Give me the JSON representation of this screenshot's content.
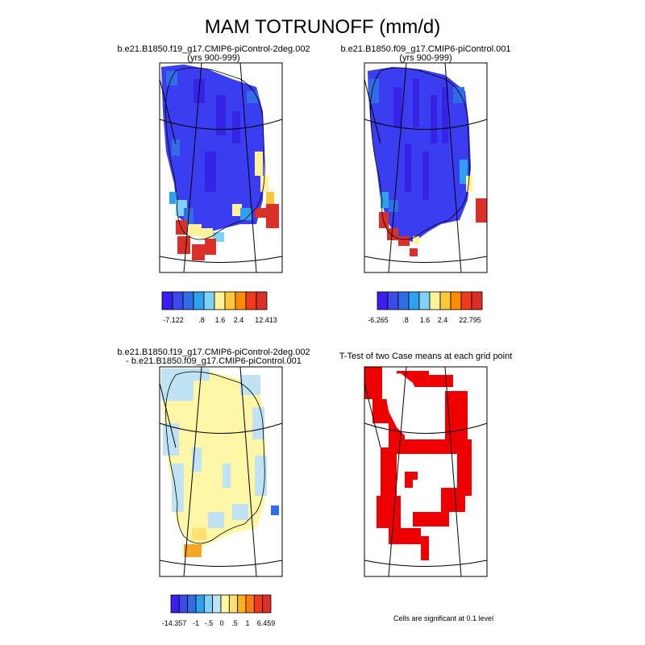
{
  "figure": {
    "title": "MAM TOTRUNOFF (mm/d)",
    "footnote": "Cells are significant at 0.1 level"
  },
  "panels": [
    {
      "id": "case1",
      "title_line1": "b.e21.B1850.f19_g17.CMIP6-piControl-2deg.002",
      "title_line2": "(yrs 900-999)",
      "colorbar": {
        "colors": [
          "#3a1ef0",
          "#3a4be8",
          "#2f6ee6",
          "#2fa0ee",
          "#7fd2f5",
          "#fff29a",
          "#ffc83a",
          "#ff8c00",
          "#f03a1e",
          "#d9302a"
        ],
        "labels": [
          "-7.122",
          ".8",
          "1.6",
          "2.4",
          "12.413"
        ]
      }
    },
    {
      "id": "case2",
      "title_line1": "b.e21.B1850.f09_g17.CMIP6-piControl.001",
      "title_line2": "(yrs 900-999)",
      "colorbar": {
        "colors": [
          "#3a1ef0",
          "#3a4be8",
          "#2f6ee6",
          "#2fa0ee",
          "#7fd2f5",
          "#fff29a",
          "#ffc83a",
          "#ff8c00",
          "#f03a1e",
          "#d9302a"
        ],
        "labels": [
          "-6.265",
          ".8",
          "1.6",
          "2.4",
          "22.795"
        ]
      }
    },
    {
      "id": "diff",
      "title_line1": "b.e21.B1850.f19_g17.CMIP6-piControl-2deg.002",
      "title_line2": "- b.e21.B1850.f09_g17.CMIP6-piControl.001",
      "colorbar": {
        "colors": [
          "#3a1ef0",
          "#3a4be8",
          "#2f6ee6",
          "#2fa0ee",
          "#7fd2f5",
          "#bfe3f2",
          "#fff6a8",
          "#ffe070",
          "#ffb020",
          "#ff7a10",
          "#f03a1e",
          "#d9302a"
        ],
        "labels": [
          "-14.357",
          "-1",
          "-.5",
          "0",
          ".5",
          "1",
          "6.459"
        ]
      }
    },
    {
      "id": "ttest",
      "title_line1": "T-Test of two Case means at each grid point",
      "title_line2": ""
    }
  ],
  "colors": {
    "low_blue": "#3b3df0",
    "mid_blue": "#4a6ee8",
    "light_blue": "#bfe3f2",
    "pale_yellow": "#fff6a8",
    "orange": "#f5a623",
    "red": "#d9302a",
    "sig_red": "#ee0000"
  }
}
